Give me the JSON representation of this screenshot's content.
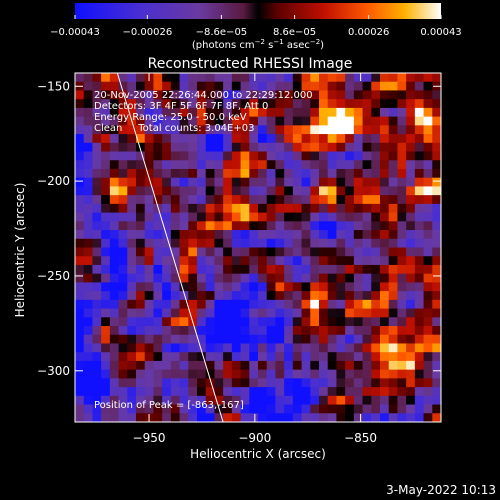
{
  "chart_data": {
    "type": "heatmap",
    "title": "Reconstructed RHESSI Image",
    "xlabel": "Heliocentric X (arcsec)",
    "ylabel": "Heliocentric Y (arcsec)",
    "xlim": [
      -985,
      -812
    ],
    "ylim": [
      -327,
      -143
    ],
    "x_ticks": [
      -950,
      -900,
      -850
    ],
    "x_tick_labels": [
      "−950",
      "−900",
      "−850"
    ],
    "y_ticks": [
      -150,
      -200,
      -250,
      -300
    ],
    "y_tick_labels": [
      "−150",
      "−200",
      "−250",
      "−300"
    ],
    "colorbar": {
      "range": [
        -0.00043,
        0.00043
      ],
      "ticks": [
        -0.00043,
        -0.00026,
        -8.6e-05,
        8.6e-05,
        0.00026,
        0.00043
      ],
      "tick_labels": [
        "−0.00043",
        "−0.00026",
        "−8.6e−05",
        "8.6e−05",
        "0.00026",
        "0.00043"
      ],
      "unit_label": "(photons cm",
      "unit_sup1": "−2",
      "unit_mid": " s",
      "unit_sup2": "−1",
      "unit_mid2": " asec",
      "unit_sup3": "−2",
      "unit_end": ")"
    },
    "annotations": {
      "time_range": "20-Nov-2005 22:26:44.000 to 22:29:12.000",
      "detectors": "Detectors: 3F 4F 5F 6F 7F 8F, Att 0",
      "energy": "Energy Range: 25.0 - 50.0 keV",
      "clean": "Clean     Total counts: 3.04E+03",
      "peak": "Position of Peak = [-863,-167]"
    },
    "peak_position": [
      -863,
      -167
    ],
    "limb_line": [
      [
        -965,
        -143
      ],
      [
        -915,
        -327
      ]
    ],
    "grid": false
  },
  "footer": {
    "date": "3-May-2022 10:13"
  }
}
